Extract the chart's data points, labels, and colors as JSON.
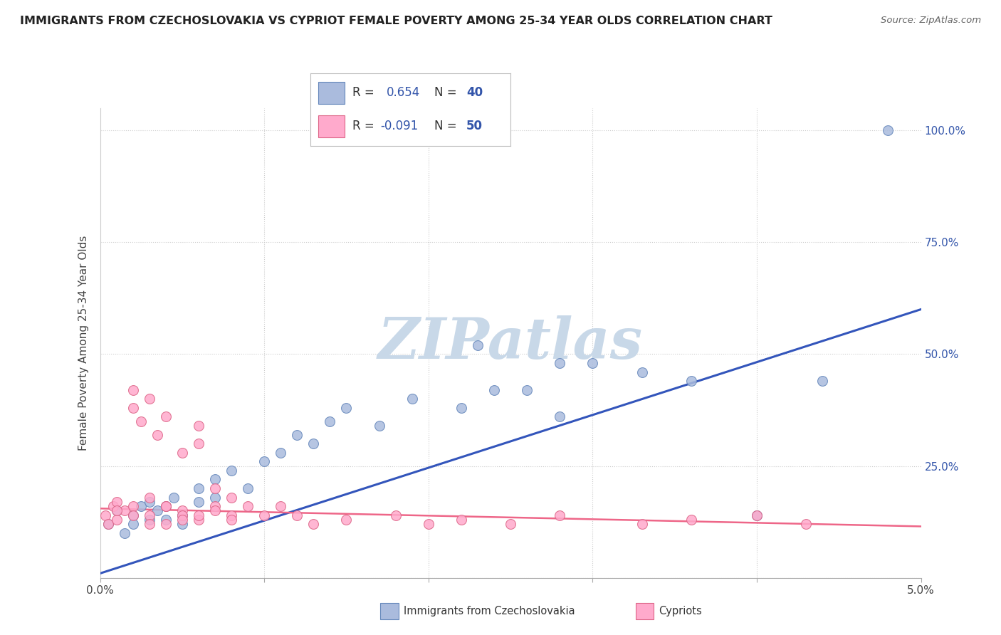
{
  "title": "IMMIGRANTS FROM CZECHOSLOVAKIA VS CYPRIOT FEMALE POVERTY AMONG 25-34 YEAR OLDS CORRELATION CHART",
  "source": "Source: ZipAtlas.com",
  "ylabel": "Female Poverty Among 25-34 Year Olds",
  "xlim": [
    0.0,
    0.05
  ],
  "ylim": [
    0.0,
    1.05
  ],
  "yticks": [
    0.0,
    0.25,
    0.5,
    0.75,
    1.0
  ],
  "ytick_labels_right": [
    "",
    "25.0%",
    "50.0%",
    "75.0%",
    "100.0%"
  ],
  "xticks": [
    0.0,
    0.01,
    0.02,
    0.03,
    0.04,
    0.05
  ],
  "xtick_labels": [
    "0.0%",
    "",
    "",
    "",
    "",
    "5.0%"
  ],
  "legend_label1": "R =  0.654   N = 40",
  "legend_label2": "R = -0.091   N = 50",
  "color_blue_fill": "#AABBDD",
  "color_pink_fill": "#FFAACC",
  "color_blue_edge": "#6688BB",
  "color_pink_edge": "#DD6688",
  "color_blue_line": "#3355BB",
  "color_pink_line": "#EE6688",
  "color_r_text": "#555555",
  "color_r_value": "#3355AA",
  "watermark": "ZIPatlas",
  "watermark_color": "#C8D8E8",
  "background": "#FFFFFF",
  "grid_color": "#CCCCCC",
  "blue_line_x": [
    0.0,
    0.05
  ],
  "blue_line_y": [
    0.01,
    0.6
  ],
  "pink_line_x": [
    0.0,
    0.05
  ],
  "pink_line_y": [
    0.155,
    0.115
  ],
  "blue_scatter_x": [
    0.0005,
    0.001,
    0.0015,
    0.002,
    0.002,
    0.0025,
    0.003,
    0.003,
    0.0035,
    0.004,
    0.004,
    0.0045,
    0.005,
    0.005,
    0.006,
    0.006,
    0.007,
    0.007,
    0.008,
    0.009,
    0.01,
    0.011,
    0.012,
    0.013,
    0.014,
    0.015,
    0.017,
    0.019,
    0.022,
    0.024,
    0.026,
    0.028,
    0.03,
    0.033,
    0.036,
    0.023,
    0.028,
    0.04,
    0.044,
    0.048
  ],
  "blue_scatter_y": [
    0.12,
    0.15,
    0.1,
    0.14,
    0.12,
    0.16,
    0.13,
    0.17,
    0.15,
    0.16,
    0.13,
    0.18,
    0.14,
    0.12,
    0.2,
    0.17,
    0.22,
    0.18,
    0.24,
    0.2,
    0.26,
    0.28,
    0.32,
    0.3,
    0.35,
    0.38,
    0.34,
    0.4,
    0.38,
    0.42,
    0.42,
    0.36,
    0.48,
    0.46,
    0.44,
    0.52,
    0.48,
    0.14,
    0.44,
    1.0
  ],
  "pink_scatter_x": [
    0.0003,
    0.0005,
    0.0008,
    0.001,
    0.001,
    0.0015,
    0.002,
    0.002,
    0.002,
    0.0025,
    0.003,
    0.003,
    0.003,
    0.0035,
    0.004,
    0.004,
    0.004,
    0.005,
    0.005,
    0.005,
    0.006,
    0.006,
    0.006,
    0.007,
    0.007,
    0.008,
    0.008,
    0.009,
    0.01,
    0.011,
    0.012,
    0.013,
    0.015,
    0.018,
    0.02,
    0.022,
    0.025,
    0.028,
    0.033,
    0.036,
    0.04,
    0.043,
    0.001,
    0.002,
    0.003,
    0.004,
    0.005,
    0.006,
    0.007,
    0.008
  ],
  "pink_scatter_y": [
    0.14,
    0.12,
    0.16,
    0.13,
    0.17,
    0.15,
    0.38,
    0.42,
    0.16,
    0.35,
    0.4,
    0.14,
    0.18,
    0.32,
    0.36,
    0.16,
    0.12,
    0.15,
    0.28,
    0.14,
    0.34,
    0.3,
    0.13,
    0.2,
    0.16,
    0.18,
    0.14,
    0.16,
    0.14,
    0.16,
    0.14,
    0.12,
    0.13,
    0.14,
    0.12,
    0.13,
    0.12,
    0.14,
    0.12,
    0.13,
    0.14,
    0.12,
    0.15,
    0.14,
    0.12,
    0.16,
    0.13,
    0.14,
    0.15,
    0.13
  ]
}
